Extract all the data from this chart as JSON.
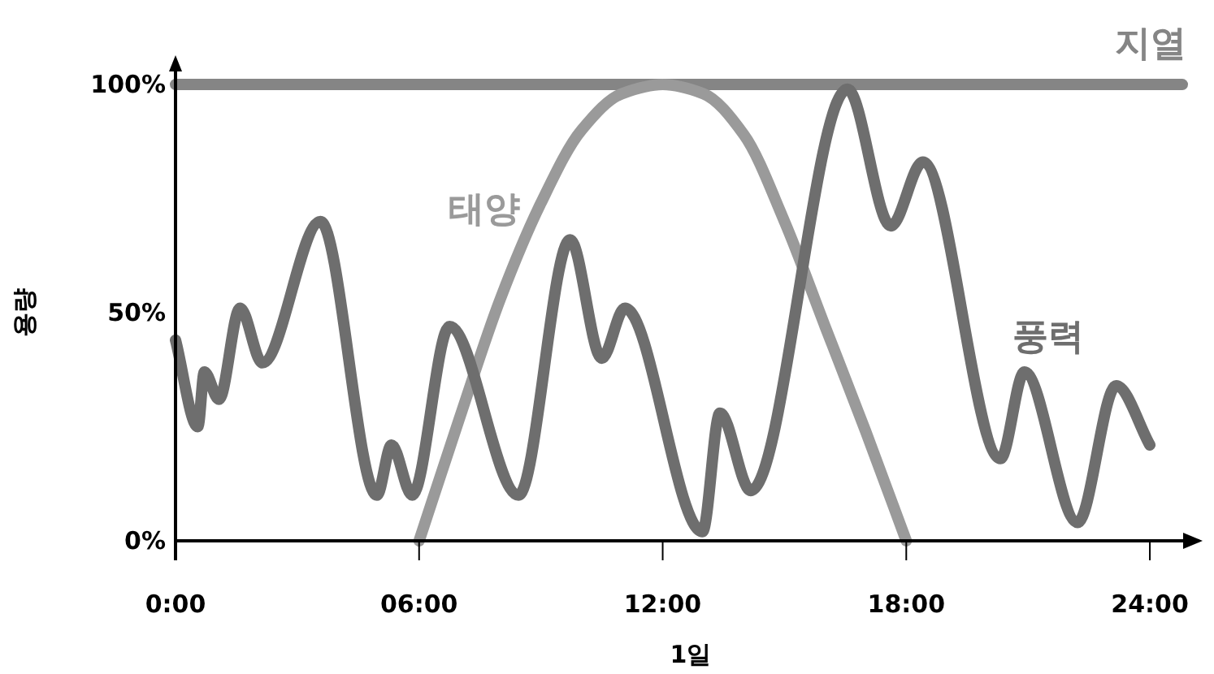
{
  "chart_data": {
    "type": "line",
    "xlabel": "1일",
    "ylabel": "용량",
    "xlim": [
      0,
      25.3
    ],
    "ylim": [
      0,
      105
    ],
    "xticks": [
      {
        "value": 0,
        "label": "0:00"
      },
      {
        "value": 6,
        "label": "06:00"
      },
      {
        "value": 12,
        "label": "12:00"
      },
      {
        "value": 18,
        "label": "18:00"
      },
      {
        "value": 24,
        "label": "24:00"
      }
    ],
    "yticks": [
      {
        "value": 0,
        "label": "0%"
      },
      {
        "value": 50,
        "label": "50%"
      },
      {
        "value": 100,
        "label": "100%"
      }
    ],
    "grid": false,
    "line_style": "solid",
    "series": [
      {
        "name": "지열",
        "color": "#858585",
        "x": [
          0,
          24.8
        ],
        "values": [
          100,
          100
        ]
      },
      {
        "name": "태양",
        "color": "#9a9a9a",
        "x": [
          6,
          7,
          8,
          9,
          10,
          11,
          12,
          13,
          14,
          15,
          16,
          17,
          18
        ],
        "values": [
          0,
          27,
          53,
          74,
          90,
          98,
          100,
          98,
          89,
          70,
          47,
          24,
          0
        ]
      },
      {
        "name": "풍력",
        "color": "#6e6e6e",
        "x": [
          0,
          0.55,
          0.71,
          1.07,
          1.59,
          2.14,
          3.57,
          4.96,
          5.32,
          5.83,
          6.75,
          8.45,
          9.72,
          10.5,
          11.07,
          12.98,
          13.41,
          14.17,
          16.55,
          17.62,
          18.41,
          20.32,
          20.91,
          22.22,
          23.17,
          24.0
        ],
        "values": [
          44,
          25,
          37,
          31,
          51,
          39,
          70,
          10,
          21,
          10,
          47,
          10,
          66,
          40,
          51,
          2,
          28,
          11,
          99,
          69,
          83,
          18,
          37,
          4,
          34,
          21
        ]
      }
    ]
  }
}
